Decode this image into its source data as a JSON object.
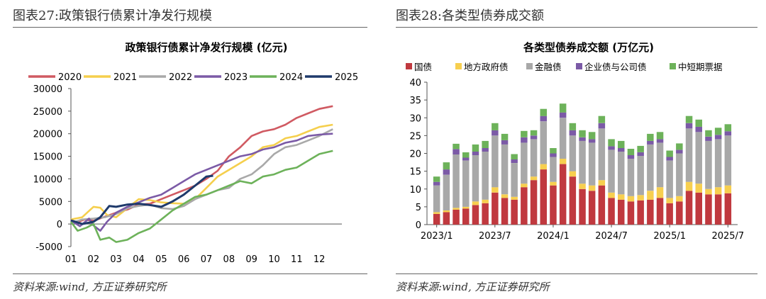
{
  "left": {
    "fig_title": "图表27:政策银行债累计净发行规模",
    "source": "资料来源:wind, 方正证券研究所"
  },
  "right": {
    "fig_title": "图表28:各类型债券成交额",
    "source": "资料来源:wind, 方正证券研究所"
  },
  "chart_data": [
    {
      "type": "line",
      "title": "政策银行债累计净发行规模 (亿元)",
      "x_ticks": [
        "01",
        "02",
        "03",
        "04",
        "05",
        "06",
        "07",
        "08",
        "09",
        "10",
        "11",
        "12"
      ],
      "ylim": [
        -5000,
        30000
      ],
      "y_ticks": [
        -5000,
        0,
        5000,
        10000,
        15000,
        20000,
        25000,
        30000
      ],
      "legend_position": "top",
      "series": [
        {
          "name": "2020",
          "color": "#d05a62",
          "points": [
            [
              1,
              800
            ],
            [
              1.3,
              400
            ],
            [
              1.6,
              1000
            ],
            [
              2,
              700
            ],
            [
              2.5,
              1600
            ],
            [
              3,
              2500
            ],
            [
              3.5,
              3200
            ],
            [
              4,
              4300
            ],
            [
              4.5,
              4500
            ],
            [
              5,
              5500
            ],
            [
              5.5,
              6500
            ],
            [
              6,
              7500
            ],
            [
              6.5,
              8500
            ],
            [
              7,
              10000
            ],
            [
              7.5,
              11800
            ],
            [
              8,
              15000
            ],
            [
              8.5,
              17000
            ],
            [
              9,
              19500
            ],
            [
              9.5,
              20500
            ],
            [
              10,
              21000
            ],
            [
              10.5,
              22000
            ],
            [
              11,
              23500
            ],
            [
              11.5,
              24500
            ],
            [
              12,
              25500
            ],
            [
              12.6,
              26100
            ]
          ]
        },
        {
          "name": "2021",
          "color": "#f5cf4d",
          "points": [
            [
              1,
              1000
            ],
            [
              1.5,
              1500
            ],
            [
              2,
              3800
            ],
            [
              2.3,
              3600
            ],
            [
              2.6,
              2000
            ],
            [
              3,
              1500
            ],
            [
              3.5,
              3500
            ],
            [
              4,
              5500
            ],
            [
              4.5,
              5300
            ],
            [
              5,
              4800
            ],
            [
              5.5,
              4600
            ],
            [
              6,
              4500
            ],
            [
              6.5,
              5500
            ],
            [
              7,
              8000
            ],
            [
              7.5,
              10500
            ],
            [
              8,
              12000
            ],
            [
              8.5,
              13500
            ],
            [
              9,
              15000
            ],
            [
              9.5,
              17000
            ],
            [
              10,
              17500
            ],
            [
              10.5,
              19000
            ],
            [
              11,
              19500
            ],
            [
              11.5,
              20500
            ],
            [
              12,
              21500
            ],
            [
              12.6,
              22000
            ]
          ]
        },
        {
          "name": "2022",
          "color": "#a9a9a9",
          "points": [
            [
              1,
              200
            ],
            [
              1.5,
              1000
            ],
            [
              2,
              1200
            ],
            [
              2.5,
              1500
            ],
            [
              3,
              2200
            ],
            [
              3.5,
              3500
            ],
            [
              4,
              4000
            ],
            [
              4.5,
              4300
            ],
            [
              5,
              3500
            ],
            [
              5.5,
              3300
            ],
            [
              6,
              4000
            ],
            [
              6.5,
              5500
            ],
            [
              7,
              6500
            ],
            [
              7.5,
              7500
            ],
            [
              8,
              8000
            ],
            [
              8.5,
              10000
            ],
            [
              9,
              11000
            ],
            [
              9.5,
              13000
            ],
            [
              10,
              15500
            ],
            [
              10.5,
              17000
            ],
            [
              11,
              17500
            ],
            [
              11.5,
              18500
            ],
            [
              12,
              19500
            ],
            [
              12.6,
              21000
            ]
          ]
        },
        {
          "name": "2023",
          "color": "#7b5aa6",
          "points": [
            [
              1,
              800
            ],
            [
              1.4,
              -500
            ],
            [
              1.8,
              1200
            ],
            [
              2,
              -300
            ],
            [
              2.3,
              -1500
            ],
            [
              2.6,
              500
            ],
            [
              3,
              2500
            ],
            [
              3.5,
              3800
            ],
            [
              4,
              4800
            ],
            [
              4.5,
              5800
            ],
            [
              5,
              6500
            ],
            [
              5.5,
              8000
            ],
            [
              6,
              9500
            ],
            [
              6.5,
              11000
            ],
            [
              7,
              12000
            ],
            [
              7.5,
              13000
            ],
            [
              8,
              14000
            ],
            [
              8.5,
              15000
            ],
            [
              9,
              15500
            ],
            [
              9.5,
              16500
            ],
            [
              10,
              17000
            ],
            [
              10.5,
              18000
            ],
            [
              11,
              18500
            ],
            [
              11.5,
              19500
            ],
            [
              12,
              19800
            ],
            [
              12.6,
              20000
            ]
          ]
        },
        {
          "name": "2024",
          "color": "#6db25a",
          "points": [
            [
              1,
              500
            ],
            [
              1.3,
              -1500
            ],
            [
              1.7,
              -800
            ],
            [
              2,
              0
            ],
            [
              2.3,
              -3500
            ],
            [
              2.7,
              -3000
            ],
            [
              3,
              -4000
            ],
            [
              3.5,
              -3500
            ],
            [
              4,
              -2000
            ],
            [
              4.5,
              -1000
            ],
            [
              5,
              1000
            ],
            [
              5.5,
              3000
            ],
            [
              6,
              4500
            ],
            [
              6.5,
              6000
            ],
            [
              7,
              6500
            ],
            [
              7.5,
              7500
            ],
            [
              8,
              8500
            ],
            [
              8.5,
              9500
            ],
            [
              9,
              9000
            ],
            [
              9.5,
              10500
            ],
            [
              10,
              11000
            ],
            [
              10.5,
              12000
            ],
            [
              11,
              12500
            ],
            [
              11.5,
              14000
            ],
            [
              12,
              15500
            ],
            [
              12.6,
              16200
            ]
          ]
        },
        {
          "name": "2025",
          "color": "#1f3a6b",
          "points": [
            [
              1,
              800
            ],
            [
              1.5,
              0
            ],
            [
              2,
              500
            ],
            [
              2.3,
              1500
            ],
            [
              2.7,
              4000
            ],
            [
              3,
              3800
            ],
            [
              3.5,
              4300
            ],
            [
              4,
              4500
            ],
            [
              4.5,
              4200
            ],
            [
              5,
              3800
            ],
            [
              5.5,
              5000
            ],
            [
              6,
              6500
            ],
            [
              6.5,
              8500
            ],
            [
              7,
              10500
            ],
            [
              7.3,
              10700
            ]
          ]
        }
      ]
    },
    {
      "type": "bar",
      "stacked": true,
      "title": "各类型债券成交额 (万亿元)",
      "x_ticks": [
        "2023/1",
        "2023/7",
        "2024/1",
        "2024/7",
        "2025/1",
        "2025/7"
      ],
      "ylim": [
        0,
        40
      ],
      "y_ticks": [
        0,
        5,
        10,
        15,
        20,
        25,
        30,
        35,
        40
      ],
      "legend_position": "top",
      "categories": [
        "2023/1",
        "2023/2",
        "2023/3",
        "2023/4",
        "2023/5",
        "2023/6",
        "2023/7",
        "2023/8",
        "2023/9",
        "2023/10",
        "2023/11",
        "2023/12",
        "2024/1",
        "2024/2",
        "2024/3",
        "2024/4",
        "2024/5",
        "2024/6",
        "2024/7",
        "2024/8",
        "2024/9",
        "2024/10",
        "2024/11",
        "2024/12",
        "2025/1",
        "2025/2",
        "2025/3",
        "2025/4",
        "2025/5",
        "2025/6",
        "2025/7"
      ],
      "series": [
        {
          "name": "国债",
          "color": "#c0393f",
          "values": [
            3.0,
            3.5,
            4.2,
            4.5,
            5.5,
            6.0,
            9.0,
            7.5,
            7.0,
            10.5,
            12.5,
            15.5,
            11.0,
            17.0,
            13.5,
            10.0,
            9.5,
            11.0,
            7.5,
            7.0,
            6.5,
            6.8,
            7.0,
            7.5,
            6.0,
            6.5,
            9.5,
            9.0,
            8.5,
            8.5,
            8.8
          ]
        },
        {
          "name": "地方政府债",
          "color": "#f7cf4f",
          "values": [
            0.5,
            0.5,
            0.5,
            0.5,
            1.0,
            1.0,
            1.5,
            1.0,
            0.8,
            1.0,
            1.0,
            1.5,
            1.0,
            1.5,
            1.5,
            1.5,
            1.5,
            1.5,
            1.5,
            1.5,
            1.5,
            1.5,
            2.5,
            3.0,
            1.5,
            1.5,
            2.5,
            2.5,
            1.5,
            2.0,
            2.2
          ]
        },
        {
          "name": "金融债",
          "color": "#a8a8a8",
          "values": [
            7.5,
            10.0,
            15.0,
            13.0,
            13.0,
            13.5,
            14.5,
            14.0,
            9.5,
            11.5,
            10.5,
            12.0,
            7.0,
            11.5,
            10.0,
            12.0,
            12.0,
            14.5,
            12.0,
            12.0,
            10.5,
            11.0,
            13.0,
            12.5,
            10.5,
            12.0,
            15.0,
            14.5,
            13.5,
            13.5,
            14.0
          ]
        },
        {
          "name": "企业债与公司债",
          "color": "#7b5aa6",
          "values": [
            1.0,
            1.5,
            1.5,
            0.8,
            1.0,
            1.0,
            1.5,
            1.2,
            1.0,
            1.5,
            1.0,
            1.5,
            1.0,
            1.5,
            1.5,
            1.0,
            1.0,
            1.5,
            1.0,
            1.0,
            1.0,
            1.0,
            1.0,
            1.0,
            1.0,
            1.0,
            1.5,
            1.5,
            1.2,
            1.2,
            1.2
          ]
        },
        {
          "name": "中短期票据",
          "color": "#6db25a",
          "values": [
            1.5,
            2.0,
            1.5,
            1.5,
            2.0,
            2.0,
            2.0,
            1.8,
            1.5,
            1.8,
            1.5,
            2.0,
            1.5,
            2.5,
            2.0,
            2.0,
            2.0,
            2.0,
            2.0,
            2.0,
            1.8,
            1.8,
            2.0,
            2.0,
            1.8,
            1.8,
            2.0,
            2.0,
            1.8,
            2.0,
            2.0
          ]
        }
      ]
    }
  ]
}
